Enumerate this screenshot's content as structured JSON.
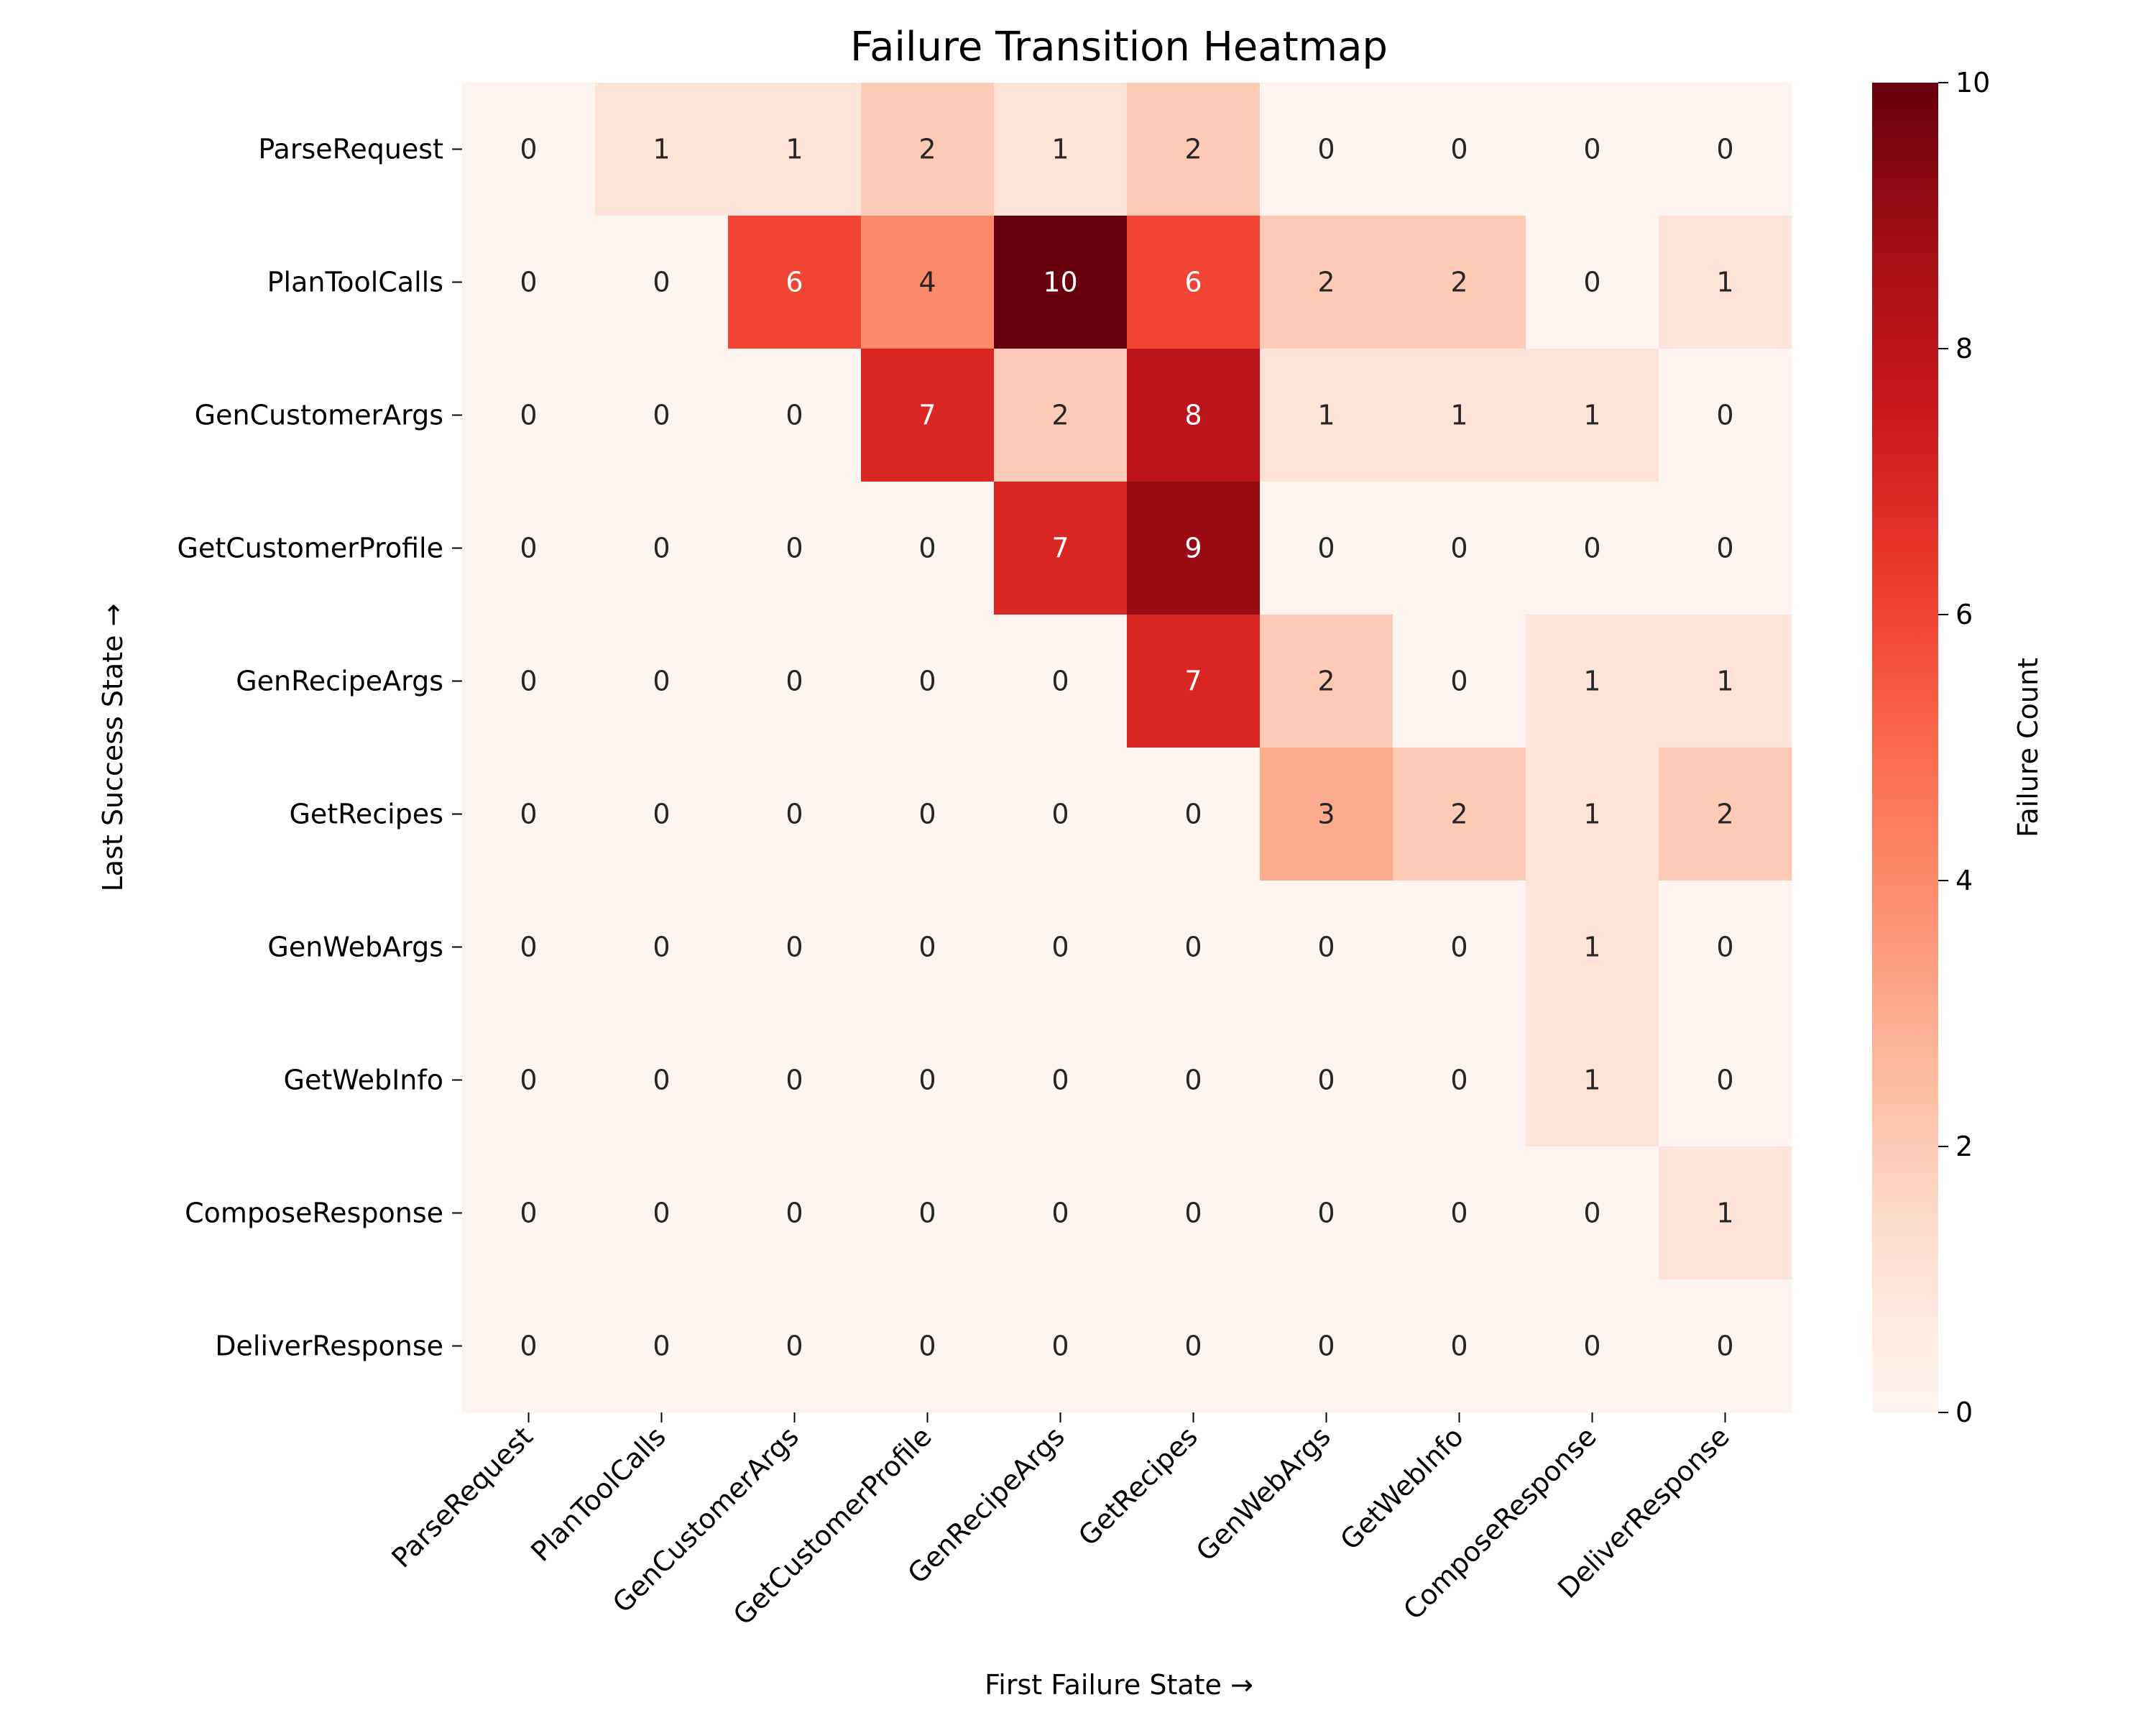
{
  "chart_data": {
    "type": "heatmap",
    "title": "Failure Transition Heatmap",
    "xlabel": "First Failure State →",
    "ylabel": "Last Success State →",
    "x_categories": [
      "ParseRequest",
      "PlanToolCalls",
      "GenCustomerArgs",
      "GetCustomerProfile",
      "GenRecipeArgs",
      "GetRecipes",
      "GenWebArgs",
      "GetWebInfo",
      "ComposeResponse",
      "DeliverResponse"
    ],
    "y_categories": [
      "ParseRequest",
      "PlanToolCalls",
      "GenCustomerArgs",
      "GetCustomerProfile",
      "GenRecipeArgs",
      "GetRecipes",
      "GenWebArgs",
      "GetWebInfo",
      "ComposeResponse",
      "DeliverResponse"
    ],
    "values": [
      [
        0,
        1,
        1,
        2,
        1,
        2,
        0,
        0,
        0,
        0
      ],
      [
        0,
        0,
        6,
        4,
        10,
        6,
        2,
        2,
        0,
        1
      ],
      [
        0,
        0,
        0,
        7,
        2,
        8,
        1,
        1,
        1,
        0
      ],
      [
        0,
        0,
        0,
        0,
        7,
        9,
        0,
        0,
        0,
        0
      ],
      [
        0,
        0,
        0,
        0,
        0,
        7,
        2,
        0,
        1,
        1
      ],
      [
        0,
        0,
        0,
        0,
        0,
        0,
        3,
        2,
        1,
        2
      ],
      [
        0,
        0,
        0,
        0,
        0,
        0,
        0,
        0,
        1,
        0
      ],
      [
        0,
        0,
        0,
        0,
        0,
        0,
        0,
        0,
        1,
        0
      ],
      [
        0,
        0,
        0,
        0,
        0,
        0,
        0,
        0,
        0,
        1
      ],
      [
        0,
        0,
        0,
        0,
        0,
        0,
        0,
        0,
        0,
        0
      ]
    ],
    "colorbar": {
      "label": "Failure Count",
      "range": [
        0,
        10
      ],
      "ticks": [
        0,
        2,
        4,
        6,
        8,
        10
      ],
      "colormap": "Reds"
    }
  }
}
